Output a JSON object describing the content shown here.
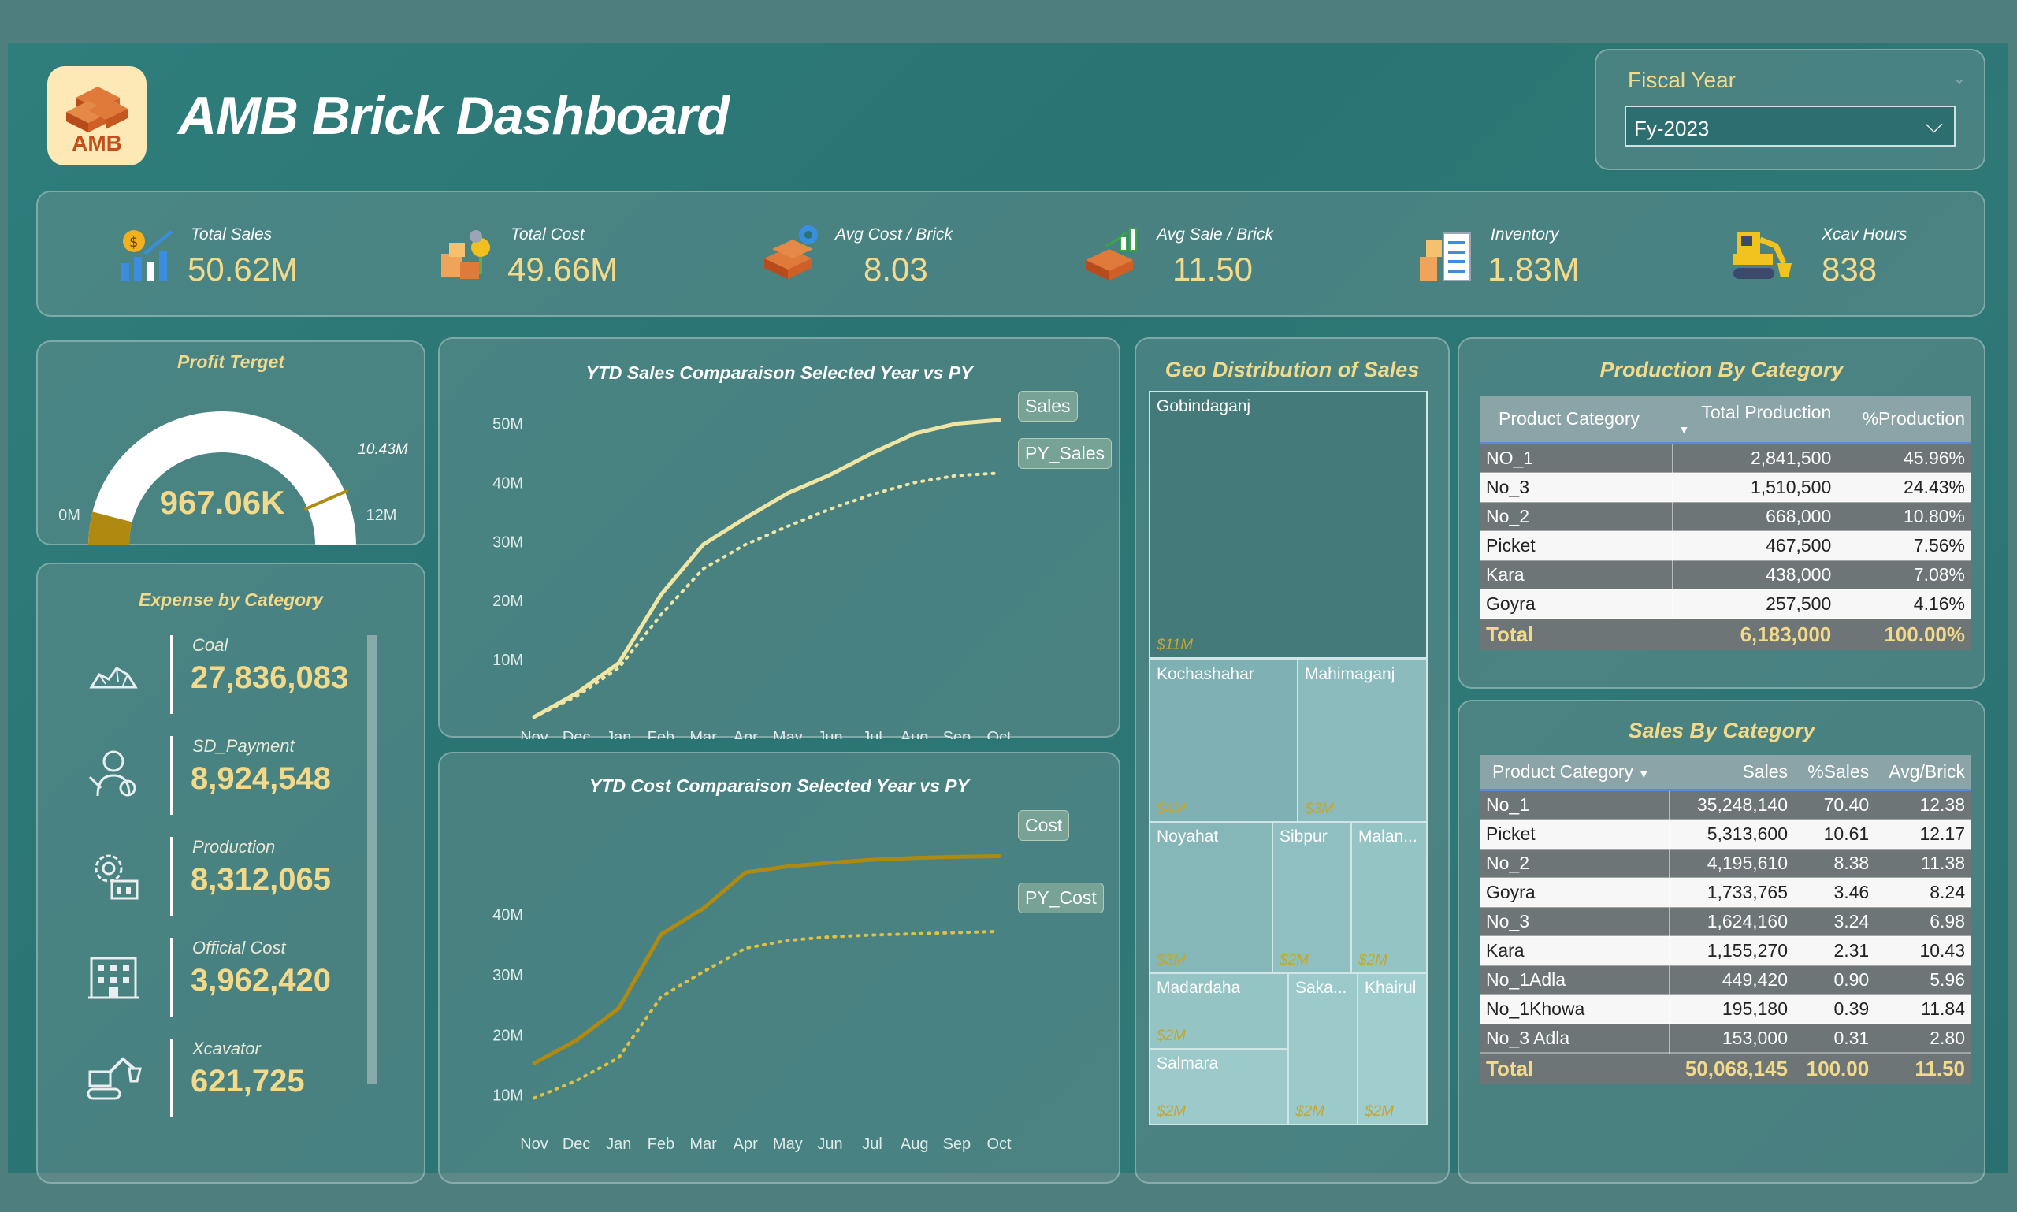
{
  "header": {
    "logo_text": "AMB",
    "title": "AMB Brick Dashboard",
    "fiscal_label": "Fiscal Year",
    "fiscal_value": "Fy-2023"
  },
  "kpis": [
    {
      "label": "Total Sales",
      "value": "50.62M",
      "icon": "sales-chart-icon"
    },
    {
      "label": "Total Cost",
      "value": "49.66M",
      "icon": "cost-boxes-icon"
    },
    {
      "label": "Avg Cost / Brick",
      "value": "8.03",
      "icon": "brick-gear-icon"
    },
    {
      "label": "Avg Sale / Brick",
      "value": "11.50",
      "icon": "brick-chart-icon"
    },
    {
      "label": "Inventory",
      "value": "1.83M",
      "icon": "inventory-icon"
    },
    {
      "label": "Xcav Hours",
      "value": "838",
      "icon": "excavator-icon"
    }
  ],
  "gauge": {
    "title": "Profit Terget",
    "value_label": "967.06K",
    "min_label": "0M",
    "max_label": "12M",
    "target_label": "10.43M",
    "value": 0.96706,
    "min": 0,
    "max": 12,
    "target": 10.43,
    "color_value": "#b08a10",
    "color_track": "#ffffff",
    "color_target": "#b08a10"
  },
  "expense": {
    "title": "Expense by Category",
    "items": [
      {
        "label": "Coal",
        "value": "27,836,083",
        "icon": "coal-icon"
      },
      {
        "label": "SD_Payment",
        "value": "8,924,548",
        "icon": "worker-payment-icon"
      },
      {
        "label": "Production",
        "value": "8,312,065",
        "icon": "production-gear-icon"
      },
      {
        "label": "Official Cost",
        "value": "3,962,420",
        "icon": "office-building-icon"
      },
      {
        "label": "Xcavator",
        "value": "621,725",
        "icon": "excavator-icon"
      }
    ]
  },
  "chart_data": [
    {
      "type": "line",
      "title": "YTD Sales Comparaison Selected Year vs PY",
      "categories": [
        "Nov",
        "Dec",
        "Jan",
        "Feb",
        "Mar",
        "Apr",
        "May",
        "Jun",
        "Jul",
        "Aug",
        "Sep",
        "Oct"
      ],
      "ylim": [
        0,
        55
      ],
      "yticks": [
        "10M",
        "20M",
        "30M",
        "40M",
        "50M"
      ],
      "ytick_values": [
        10,
        20,
        30,
        40,
        50
      ],
      "series": [
        {
          "name": "Sales",
          "values": [
            0.3,
            4.3,
            9.4,
            21.0,
            29.5,
            34.0,
            38.2,
            41.3,
            45.0,
            48.3,
            50.0,
            50.6
          ],
          "style": "solid",
          "color": "#f1e5a4"
        },
        {
          "name": "PY_Sales",
          "values": [
            0.3,
            3.8,
            8.6,
            17.6,
            25.4,
            29.5,
            32.6,
            35.5,
            38.0,
            40.0,
            41.2,
            41.6
          ],
          "style": "dotted",
          "color": "#f1e5a4"
        }
      ]
    },
    {
      "type": "line",
      "title": "YTD Cost Comparaison Selected Year vs PY",
      "categories": [
        "Nov",
        "Dec",
        "Jan",
        "Feb",
        "Mar",
        "Apr",
        "May",
        "Jun",
        "Jul",
        "Aug",
        "Sep",
        "Oct"
      ],
      "ylim": [
        0,
        55
      ],
      "yticks": [
        "10M",
        "20M",
        "30M",
        "40M"
      ],
      "ytick_values": [
        10,
        20,
        30,
        40
      ],
      "series": [
        {
          "name": "Cost",
          "values": [
            15.3,
            19.1,
            24.4,
            36.7,
            41.0,
            47.0,
            48.0,
            48.6,
            49.1,
            49.4,
            49.6,
            49.7
          ],
          "style": "solid",
          "color": "#b08a10"
        },
        {
          "name": "PY_Cost",
          "values": [
            9.5,
            12.4,
            16.2,
            26.3,
            30.5,
            34.4,
            35.7,
            36.3,
            36.6,
            36.8,
            37.0,
            37.2
          ],
          "style": "dotted",
          "color": "#e0c040"
        }
      ]
    }
  ],
  "geo": {
    "title": "Geo Distribution of Sales",
    "cells": [
      {
        "name": "Gobindaganj",
        "value": "$11M"
      },
      {
        "name": "Kochashahar",
        "value": "$4M"
      },
      {
        "name": "Mahimaganj",
        "value": "$3M"
      },
      {
        "name": "Noyahat",
        "value": "$3M"
      },
      {
        "name": "Sibpur",
        "value": "$2M"
      },
      {
        "name": "Malan...",
        "value": "$2M"
      },
      {
        "name": "Madardaha",
        "value": "$2M"
      },
      {
        "name": "Saka...",
        "value": "$2M"
      },
      {
        "name": "Khairul",
        "value": "$2M"
      },
      {
        "name": "Salmara",
        "value": "$2M"
      }
    ]
  },
  "production": {
    "title": "Production By Category",
    "headers": [
      "Product Category",
      "Total Production",
      "%Production"
    ],
    "rows": [
      [
        "NO_1",
        "2,841,500",
        "45.96%"
      ],
      [
        "No_3",
        "1,510,500",
        "24.43%"
      ],
      [
        "No_2",
        "668,000",
        "10.80%"
      ],
      [
        "Picket",
        "467,500",
        "7.56%"
      ],
      [
        "Kara",
        "438,000",
        "7.08%"
      ],
      [
        "Goyra",
        "257,500",
        "4.16%"
      ]
    ],
    "total": [
      "Total",
      "6,183,000",
      "100.00%"
    ]
  },
  "sales_cat": {
    "title": "Sales By Category",
    "headers": [
      "Product Category",
      "Sales",
      "%Sales",
      "Avg/Brick"
    ],
    "rows": [
      [
        "No_1",
        "35,248,140",
        "70.40",
        "12.38"
      ],
      [
        "Picket",
        "5,313,600",
        "10.61",
        "12.17"
      ],
      [
        "No_2",
        "4,195,610",
        "8.38",
        "11.38"
      ],
      [
        "Goyra",
        "1,733,765",
        "3.46",
        "8.24"
      ],
      [
        "No_3",
        "1,624,160",
        "3.24",
        "6.98"
      ],
      [
        "Kara",
        "1,155,270",
        "2.31",
        "10.43"
      ],
      [
        "No_1Adla",
        "449,420",
        "0.90",
        "5.96"
      ],
      [
        "No_1Khowa",
        "195,180",
        "0.39",
        "11.84"
      ],
      [
        "No_3 Adla",
        "153,000",
        "0.31",
        "2.80"
      ]
    ],
    "total": [
      "Total",
      "50,068,145",
      "100.00",
      "11.50"
    ]
  }
}
